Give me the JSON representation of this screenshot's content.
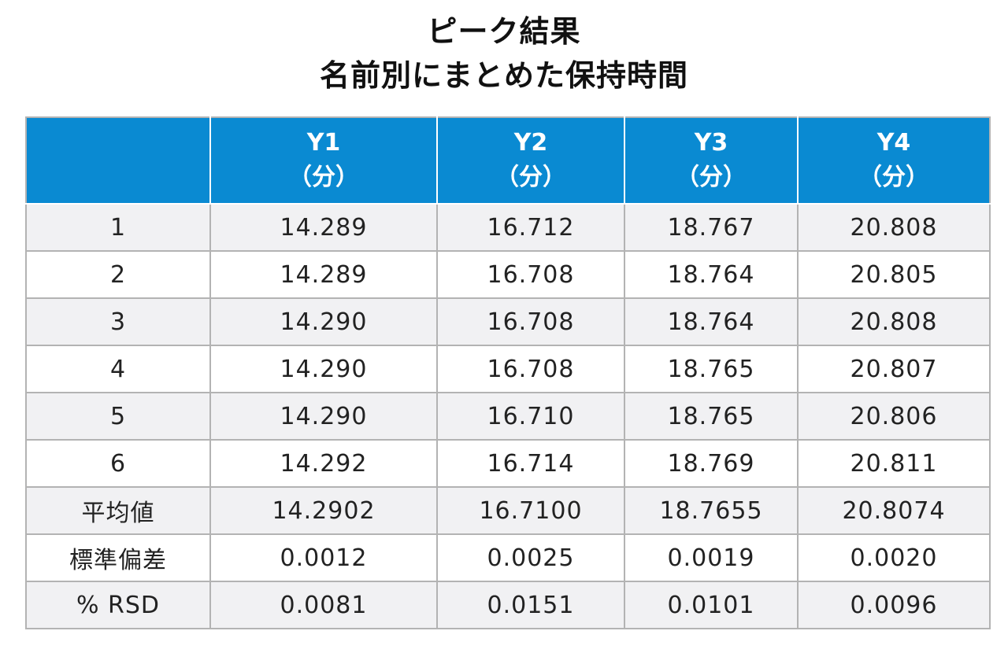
{
  "title": {
    "line1": "ピーク結果",
    "line2": "名前別にまとめた保持時間"
  },
  "table": {
    "header": {
      "corner": "",
      "columns": [
        {
          "name": "Y1",
          "unit": "（分）"
        },
        {
          "name": "Y2",
          "unit": "（分）"
        },
        {
          "name": "Y3",
          "unit": "（分）"
        },
        {
          "name": "Y4",
          "unit": "（分）"
        }
      ]
    },
    "rows": [
      {
        "label": "1",
        "values": [
          "14.289",
          "16.712",
          "18.767",
          "20.808"
        ]
      },
      {
        "label": "2",
        "values": [
          "14.289",
          "16.708",
          "18.764",
          "20.805"
        ]
      },
      {
        "label": "3",
        "values": [
          "14.290",
          "16.708",
          "18.764",
          "20.808"
        ]
      },
      {
        "label": "4",
        "values": [
          "14.290",
          "16.708",
          "18.765",
          "20.807"
        ]
      },
      {
        "label": "5",
        "values": [
          "14.290",
          "16.710",
          "18.765",
          "20.806"
        ]
      },
      {
        "label": "6",
        "values": [
          "14.292",
          "16.714",
          "18.769",
          "20.811"
        ]
      },
      {
        "label": "平均値",
        "values": [
          "14.2902",
          "16.7100",
          "18.7655",
          "20.8074"
        ]
      },
      {
        "label": "標準偏差",
        "values": [
          "0.0012",
          "0.0025",
          "0.0019",
          "0.0020"
        ]
      },
      {
        "label": "% RSD",
        "values": [
          "0.0081",
          "0.0151",
          "0.0101",
          "0.0096"
        ]
      }
    ]
  },
  "colors": {
    "header_bg": "#0a8ad2",
    "header_text": "#ffffff",
    "row_alt_bg": "#f1f1f3",
    "grid_line": "#b3b3b3"
  }
}
